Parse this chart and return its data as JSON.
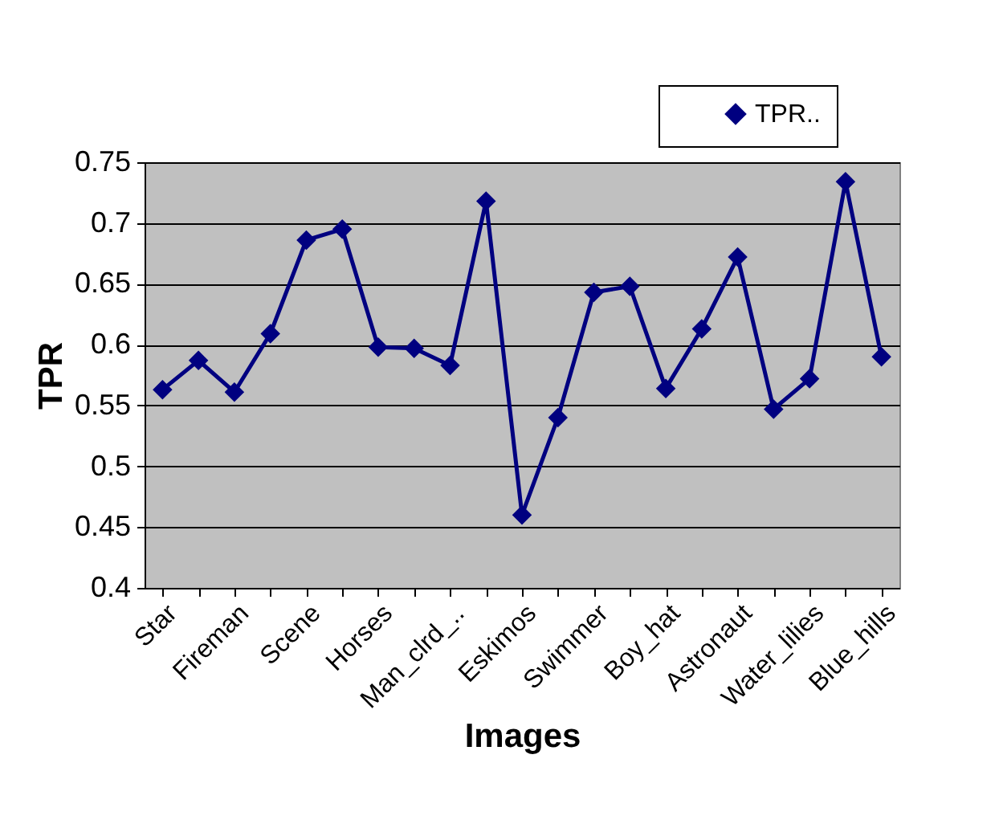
{
  "chart_data": {
    "type": "line",
    "xlabel": "Images",
    "ylabel": "TPR",
    "categories": [
      "Star",
      null,
      "Fireman",
      null,
      "Scene",
      null,
      "Horses",
      null,
      "Man_clrd_..",
      null,
      "Eskimos",
      null,
      "Swimmer",
      null,
      "Boy_hat",
      null,
      "Astronaut",
      null,
      "Water_lilies",
      null,
      "Blue_hills"
    ],
    "series": [
      {
        "name": "TPR..",
        "color": "#000080",
        "values": [
          0.563,
          0.587,
          0.561,
          0.609,
          0.686,
          0.695,
          0.598,
          0.597,
          0.583,
          0.718,
          0.46,
          0.54,
          0.643,
          0.648,
          0.564,
          0.613,
          0.672,
          0.547,
          0.572,
          0.734,
          0.59
        ]
      }
    ],
    "ylim": [
      0.4,
      0.75
    ],
    "yticks": [
      0.4,
      0.45,
      0.5,
      0.55,
      0.6,
      0.65,
      0.7,
      0.75
    ],
    "grid": "y",
    "legend": "top right",
    "marker": "diamond",
    "line_style": "solid"
  }
}
